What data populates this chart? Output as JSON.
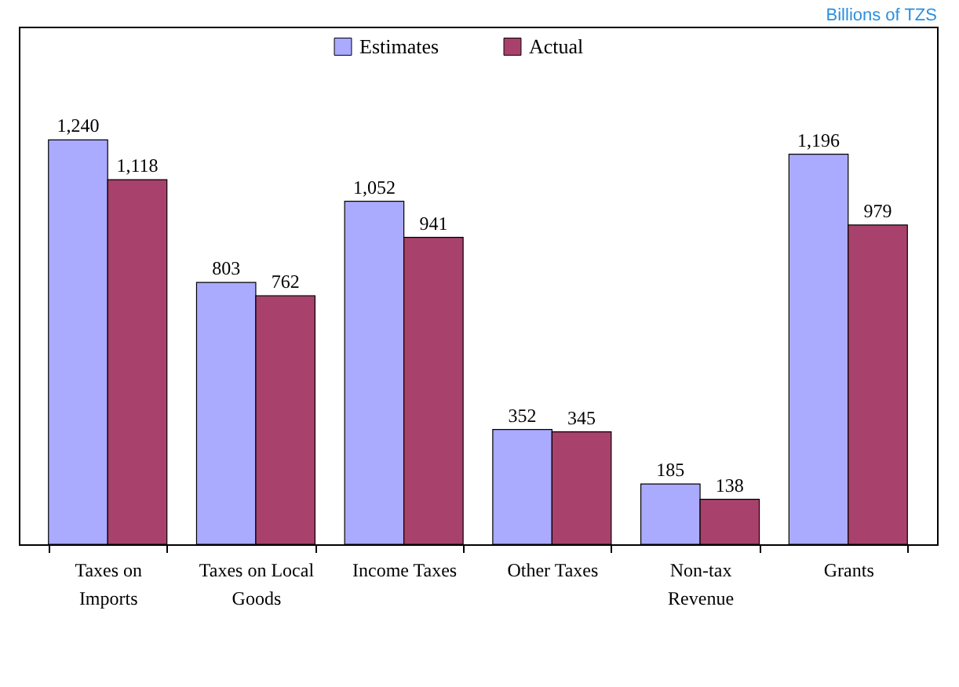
{
  "chart_data": {
    "type": "bar",
    "categories": [
      "Taxes on Imports",
      "Taxes on Local Goods",
      "Income Taxes",
      "Other Taxes",
      "Non-tax Revenue",
      "Grants"
    ],
    "series": [
      {
        "name": "Estimates",
        "color": "#aaaaff",
        "values": [
          1240,
          803,
          1052,
          352,
          185,
          1196
        ],
        "value_labels": [
          "1,240",
          "803",
          "1,052",
          "352",
          "185",
          "1,196"
        ]
      },
      {
        "name": "Actual",
        "color": "#a8426c",
        "values": [
          1118,
          762,
          941,
          345,
          138,
          979
        ],
        "value_labels": [
          "1,118",
          "762",
          "941",
          "345",
          "138",
          "979"
        ]
      }
    ],
    "legend": "top",
    "grid": false,
    "annotations": [
      "Billions of TZS"
    ]
  }
}
